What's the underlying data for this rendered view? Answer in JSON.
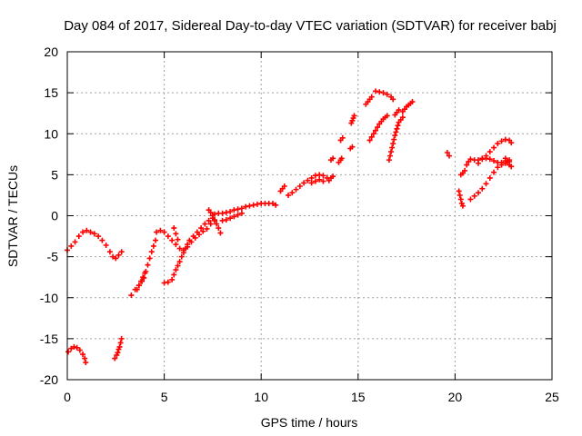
{
  "chart_data": {
    "type": "scatter",
    "title": "Day 084 of 2017, Sidereal Day-to-day VTEC variation (SDTVAR) for receiver babj",
    "xlabel": "GPS time / hours",
    "ylabel": "SDTVAR / TECUs",
    "xlim": [
      0,
      25
    ],
    "ylim": [
      -20,
      20
    ],
    "xticks": [
      0,
      5,
      10,
      15,
      20,
      25
    ],
    "yticks": [
      -20,
      -15,
      -10,
      -5,
      0,
      5,
      10,
      15,
      20
    ],
    "grid": true,
    "grid_style": "dotted",
    "marker": "+",
    "color": "#ff0000",
    "series": [
      {
        "values": [
          [
            0.0,
            -4.2
          ],
          [
            0.2,
            -3.7
          ],
          [
            0.4,
            -3.2
          ],
          [
            0.6,
            -2.5
          ],
          [
            0.8,
            -2.0
          ],
          [
            1.0,
            -1.8
          ],
          [
            1.2,
            -2.0
          ],
          [
            1.4,
            -2.2
          ],
          [
            1.6,
            -2.5
          ],
          [
            1.8,
            -3.0
          ],
          [
            2.0,
            -3.6
          ],
          [
            2.2,
            -4.4
          ],
          [
            2.35,
            -5.0
          ],
          [
            2.5,
            -5.2
          ],
          [
            2.65,
            -4.8
          ],
          [
            2.8,
            -4.4
          ]
        ]
      },
      {
        "values": [
          [
            0.05,
            -16.6
          ],
          [
            0.2,
            -16.2
          ],
          [
            0.35,
            -16.0
          ],
          [
            0.5,
            -16.1
          ],
          [
            0.65,
            -16.4
          ],
          [
            0.8,
            -16.9
          ],
          [
            0.9,
            -17.4
          ],
          [
            0.95,
            -17.9
          ]
        ]
      },
      {
        "values": [
          [
            2.45,
            -17.4
          ],
          [
            2.55,
            -17.0
          ],
          [
            2.6,
            -16.7
          ],
          [
            2.65,
            -16.3
          ],
          [
            2.7,
            -16.0
          ],
          [
            2.75,
            -15.5
          ],
          [
            2.8,
            -15.0
          ]
        ]
      },
      {
        "values": [
          [
            3.3,
            -9.7
          ],
          [
            3.5,
            -9.0
          ],
          [
            3.7,
            -8.5
          ],
          [
            3.85,
            -8.0
          ],
          [
            3.95,
            -7.6
          ],
          [
            4.05,
            -6.8
          ],
          [
            4.15,
            -6.0
          ],
          [
            4.25,
            -5.2
          ],
          [
            4.35,
            -4.4
          ],
          [
            4.45,
            -3.7
          ],
          [
            4.55,
            -3.0
          ]
        ]
      },
      {
        "values": [
          [
            3.6,
            -9.0
          ],
          [
            3.7,
            -8.5
          ],
          [
            3.8,
            -8.0
          ],
          [
            3.9,
            -7.5
          ],
          [
            4.0,
            -7.0
          ]
        ]
      },
      {
        "values": [
          [
            4.6,
            -2.0
          ],
          [
            4.8,
            -1.8
          ],
          [
            5.0,
            -2.0
          ],
          [
            5.2,
            -2.5
          ],
          [
            5.4,
            -3.0
          ],
          [
            5.6,
            -3.5
          ],
          [
            5.8,
            -4.0
          ],
          [
            6.0,
            -4.2
          ],
          [
            6.2,
            -3.8
          ],
          [
            6.4,
            -3.2
          ],
          [
            6.6,
            -2.7
          ],
          [
            6.8,
            -2.3
          ],
          [
            7.0,
            -1.9
          ],
          [
            7.2,
            -1.6
          ],
          [
            7.4,
            -1.0
          ],
          [
            7.6,
            -0.6
          ]
        ]
      },
      {
        "values": [
          [
            5.0,
            -8.2
          ],
          [
            5.2,
            -8.1
          ],
          [
            5.4,
            -7.8
          ],
          [
            5.5,
            -7.2
          ],
          [
            5.6,
            -6.6
          ],
          [
            5.7,
            -6.1
          ],
          [
            5.8,
            -5.6
          ],
          [
            5.9,
            -5.0
          ],
          [
            6.0,
            -4.5
          ],
          [
            6.1,
            -4.0
          ],
          [
            6.2,
            -3.5
          ],
          [
            6.3,
            -3.0
          ],
          [
            6.5,
            -2.5
          ],
          [
            6.7,
            -2.0
          ],
          [
            6.9,
            -1.5
          ],
          [
            7.1,
            -1.0
          ],
          [
            7.3,
            -0.6
          ],
          [
            7.5,
            -0.3
          ]
        ]
      },
      {
        "values": [
          [
            5.5,
            -1.5
          ],
          [
            5.6,
            -2.2
          ],
          [
            5.7,
            -2.9
          ]
        ]
      },
      {
        "values": [
          [
            7.3,
            0.7
          ],
          [
            7.4,
            0.4
          ],
          [
            7.5,
            0.0
          ],
          [
            7.6,
            -0.5
          ],
          [
            7.7,
            -1.0
          ],
          [
            7.8,
            -1.5
          ],
          [
            7.9,
            -2.1
          ]
        ]
      },
      {
        "values": [
          [
            7.6,
            0.2
          ],
          [
            7.8,
            0.3
          ],
          [
            8.0,
            0.3
          ],
          [
            8.2,
            0.4
          ],
          [
            8.4,
            0.5
          ],
          [
            8.6,
            0.7
          ],
          [
            8.8,
            0.8
          ],
          [
            9.0,
            0.9
          ],
          [
            9.2,
            1.1
          ],
          [
            9.4,
            1.2
          ],
          [
            9.6,
            1.3
          ],
          [
            9.8,
            1.4
          ],
          [
            10.0,
            1.5
          ],
          [
            10.2,
            1.5
          ],
          [
            10.4,
            1.5
          ],
          [
            10.6,
            1.5
          ],
          [
            10.75,
            1.3
          ]
        ]
      },
      {
        "values": [
          [
            8.0,
            -0.6
          ],
          [
            8.2,
            -0.5
          ],
          [
            8.4,
            -0.3
          ],
          [
            8.6,
            -0.1
          ],
          [
            8.8,
            0.1
          ],
          [
            9.0,
            0.3
          ]
        ]
      },
      {
        "values": [
          [
            11.0,
            3.0
          ],
          [
            11.1,
            3.3
          ],
          [
            11.2,
            3.6
          ]
        ]
      },
      {
        "values": [
          [
            11.4,
            2.5
          ],
          [
            11.6,
            2.8
          ],
          [
            11.8,
            3.2
          ],
          [
            12.0,
            3.6
          ],
          [
            12.2,
            4.0
          ],
          [
            12.4,
            4.3
          ],
          [
            12.6,
            4.6
          ],
          [
            12.8,
            4.9
          ],
          [
            13.0,
            5.0
          ],
          [
            13.2,
            4.9
          ],
          [
            13.4,
            4.6
          ]
        ]
      },
      {
        "values": [
          [
            12.6,
            4.0
          ],
          [
            12.8,
            4.2
          ],
          [
            13.0,
            4.4
          ],
          [
            13.2,
            4.2
          ]
        ]
      },
      {
        "values": [
          [
            13.5,
            4.3
          ],
          [
            13.6,
            4.6
          ],
          [
            13.7,
            4.8
          ]
        ]
      },
      {
        "values": [
          [
            13.6,
            6.8
          ],
          [
            13.7,
            7.0
          ]
        ]
      },
      {
        "values": [
          [
            14.0,
            6.5
          ],
          [
            14.1,
            6.8
          ],
          [
            14.15,
            7.0
          ]
        ]
      },
      {
        "values": [
          [
            14.1,
            9.2
          ],
          [
            14.2,
            9.5
          ]
        ]
      },
      {
        "values": [
          [
            14.6,
            8.2
          ],
          [
            14.7,
            8.4
          ]
        ]
      },
      {
        "values": [
          [
            14.65,
            11.3
          ],
          [
            14.7,
            11.6
          ],
          [
            14.75,
            11.9
          ],
          [
            14.8,
            12.2
          ]
        ]
      },
      {
        "values": [
          [
            15.4,
            13.6
          ],
          [
            15.5,
            13.9
          ],
          [
            15.6,
            14.2
          ],
          [
            15.7,
            14.5
          ]
        ]
      },
      {
        "values": [
          [
            15.9,
            15.2
          ],
          [
            16.1,
            15.1
          ],
          [
            16.3,
            15.0
          ],
          [
            16.5,
            14.8
          ],
          [
            16.7,
            14.5
          ],
          [
            16.8,
            14.2
          ]
        ]
      },
      {
        "values": [
          [
            15.6,
            9.2
          ],
          [
            15.7,
            9.6
          ],
          [
            15.8,
            10.0
          ],
          [
            15.9,
            10.4
          ],
          [
            16.0,
            10.8
          ],
          [
            16.1,
            11.2
          ],
          [
            16.2,
            11.5
          ],
          [
            16.3,
            11.8
          ],
          [
            16.4,
            12.0
          ],
          [
            16.5,
            12.2
          ]
        ]
      },
      {
        "values": [
          [
            16.6,
            6.8
          ],
          [
            16.65,
            7.3
          ],
          [
            16.7,
            7.8
          ],
          [
            16.75,
            8.3
          ],
          [
            16.8,
            8.8
          ],
          [
            16.85,
            9.3
          ],
          [
            16.9,
            9.8
          ],
          [
            16.95,
            10.2
          ],
          [
            17.0,
            10.6
          ],
          [
            17.05,
            11.0
          ],
          [
            17.1,
            11.4
          ],
          [
            17.2,
            11.7
          ],
          [
            17.3,
            12.0
          ]
        ]
      },
      {
        "values": [
          [
            16.9,
            12.3
          ],
          [
            17.0,
            12.6
          ],
          [
            17.1,
            12.9
          ]
        ]
      },
      {
        "values": [
          [
            17.3,
            12.7
          ],
          [
            17.4,
            13.0
          ],
          [
            17.5,
            13.3
          ],
          [
            17.6,
            13.5
          ],
          [
            17.7,
            13.7
          ],
          [
            17.8,
            13.9
          ]
        ]
      },
      {
        "values": [
          [
            19.6,
            7.7
          ],
          [
            19.7,
            7.3
          ]
        ]
      },
      {
        "values": [
          [
            20.2,
            3.0
          ],
          [
            20.25,
            2.5
          ],
          [
            20.3,
            2.0
          ],
          [
            20.35,
            1.5
          ],
          [
            20.4,
            1.2
          ]
        ]
      },
      {
        "values": [
          [
            20.3,
            5.0
          ],
          [
            20.4,
            5.2
          ],
          [
            20.5,
            5.5
          ],
          [
            20.6,
            6.2
          ],
          [
            20.7,
            6.6
          ],
          [
            20.8,
            6.9
          ],
          [
            21.0,
            6.8
          ],
          [
            21.2,
            6.8
          ],
          [
            21.4,
            7.0
          ],
          [
            21.6,
            7.0
          ],
          [
            21.8,
            6.9
          ],
          [
            22.0,
            6.7
          ],
          [
            22.2,
            6.5
          ],
          [
            22.4,
            6.5
          ],
          [
            22.6,
            6.7
          ],
          [
            22.8,
            6.8
          ]
        ]
      },
      {
        "values": [
          [
            20.8,
            2.0
          ],
          [
            21.0,
            2.4
          ],
          [
            21.2,
            2.8
          ],
          [
            21.4,
            3.3
          ],
          [
            21.6,
            3.9
          ],
          [
            21.8,
            4.6
          ],
          [
            22.0,
            5.3
          ],
          [
            22.2,
            5.9
          ],
          [
            22.4,
            6.2
          ],
          [
            22.6,
            6.4
          ],
          [
            22.8,
            6.6
          ]
        ]
      },
      {
        "values": [
          [
            21.2,
            6.4
          ],
          [
            21.4,
            6.9
          ],
          [
            21.6,
            7.3
          ],
          [
            21.8,
            7.8
          ],
          [
            22.0,
            8.3
          ],
          [
            22.2,
            8.8
          ],
          [
            22.4,
            9.1
          ],
          [
            22.6,
            9.3
          ],
          [
            22.8,
            9.2
          ],
          [
            22.9,
            8.9
          ]
        ]
      },
      {
        "values": [
          [
            22.6,
            7.0
          ],
          [
            22.7,
            6.6
          ],
          [
            22.8,
            6.2
          ],
          [
            22.9,
            6.0
          ]
        ]
      }
    ]
  }
}
